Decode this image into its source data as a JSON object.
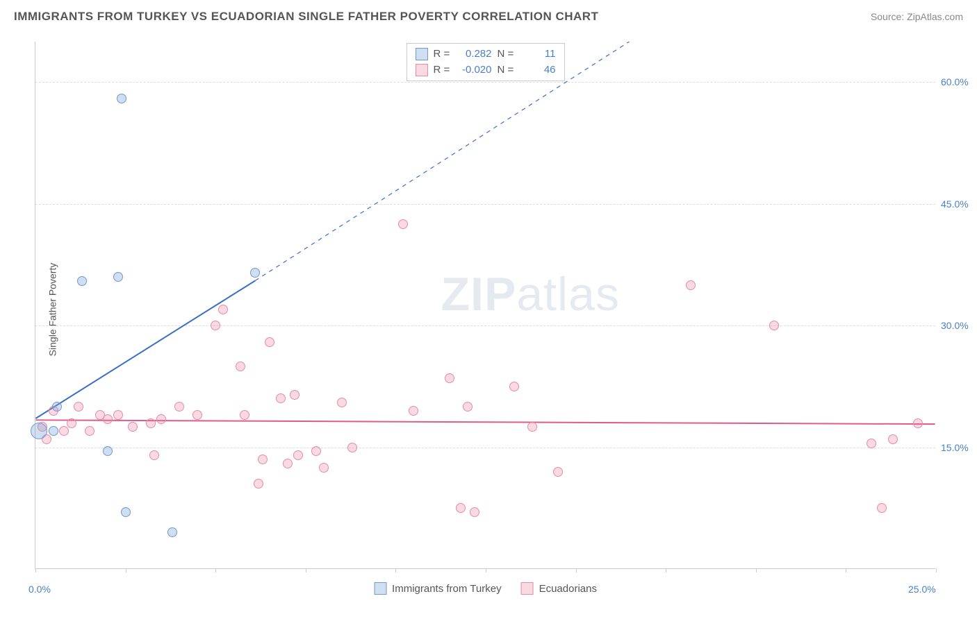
{
  "header": {
    "title": "IMMIGRANTS FROM TURKEY VS ECUADORIAN SINGLE FATHER POVERTY CORRELATION CHART",
    "source": "Source: ZipAtlas.com"
  },
  "chart": {
    "type": "scatter",
    "ylabel": "Single Father Poverty",
    "xlim": [
      0,
      25
    ],
    "ylim": [
      0,
      65
    ],
    "yticks": [
      15,
      30,
      45,
      60
    ],
    "ytick_labels": [
      "15.0%",
      "30.0%",
      "45.0%",
      "60.0%"
    ],
    "xticks": [
      0,
      2.5,
      5,
      7.5,
      10,
      12.5,
      15,
      17.5,
      20,
      22.5,
      25
    ],
    "xtick_labels_shown": {
      "first": "0.0%",
      "last": "25.0%"
    },
    "grid_color": "#dddddd",
    "axis_color": "#cccccc",
    "background_color": "#ffffff",
    "watermark": "ZIPatlas"
  },
  "series": {
    "turkey": {
      "label": "Immigrants from Turkey",
      "color_fill": "rgba(120,160,214,0.35)",
      "color_stroke": "#6f99cf",
      "marker_size": 14,
      "R": "0.282",
      "N": "11",
      "trend": {
        "x1": 0,
        "y1": 18.5,
        "x2": 6.1,
        "y2": 35.5,
        "dash_x2": 16.5,
        "dash_y2": 65,
        "color": "#3b6fc4",
        "width": 2
      },
      "points": [
        {
          "x": 0.1,
          "y": 17.0,
          "r": 24
        },
        {
          "x": 0.5,
          "y": 17.0
        },
        {
          "x": 0.6,
          "y": 20.0
        },
        {
          "x": 1.3,
          "y": 35.5
        },
        {
          "x": 2.0,
          "y": 14.5
        },
        {
          "x": 2.3,
          "y": 36.0
        },
        {
          "x": 2.4,
          "y": 58.0
        },
        {
          "x": 2.5,
          "y": 7.0
        },
        {
          "x": 3.8,
          "y": 4.5
        },
        {
          "x": 6.1,
          "y": 36.5
        }
      ]
    },
    "ecuadorians": {
      "label": "Ecuadorians",
      "color_fill": "rgba(236,128,160,0.30)",
      "color_stroke": "#e68aa8",
      "marker_size": 14,
      "R": "-0.020",
      "N": "46",
      "trend": {
        "x1": 0,
        "y1": 18.3,
        "x2": 25,
        "y2": 17.8,
        "color": "#e05a8a",
        "width": 2
      },
      "points": [
        {
          "x": 0.2,
          "y": 17.5
        },
        {
          "x": 0.3,
          "y": 16.0
        },
        {
          "x": 0.5,
          "y": 19.5
        },
        {
          "x": 0.8,
          "y": 17.0
        },
        {
          "x": 1.0,
          "y": 18.0
        },
        {
          "x": 1.2,
          "y": 20.0
        },
        {
          "x": 1.5,
          "y": 17.0
        },
        {
          "x": 1.8,
          "y": 19.0
        },
        {
          "x": 2.0,
          "y": 18.5
        },
        {
          "x": 2.3,
          "y": 19.0
        },
        {
          "x": 2.7,
          "y": 17.5
        },
        {
          "x": 3.2,
          "y": 18.0
        },
        {
          "x": 3.3,
          "y": 14.0
        },
        {
          "x": 3.5,
          "y": 18.5
        },
        {
          "x": 4.0,
          "y": 20.0
        },
        {
          "x": 4.5,
          "y": 19.0
        },
        {
          "x": 5.0,
          "y": 30.0
        },
        {
          "x": 5.2,
          "y": 32.0
        },
        {
          "x": 5.7,
          "y": 25.0
        },
        {
          "x": 5.8,
          "y": 19.0
        },
        {
          "x": 6.2,
          "y": 10.5
        },
        {
          "x": 6.3,
          "y": 13.5
        },
        {
          "x": 6.5,
          "y": 28.0
        },
        {
          "x": 6.8,
          "y": 21.0
        },
        {
          "x": 7.0,
          "y": 13.0
        },
        {
          "x": 7.2,
          "y": 21.5
        },
        {
          "x": 7.3,
          "y": 14.0
        },
        {
          "x": 7.8,
          "y": 14.5
        },
        {
          "x": 8.0,
          "y": 12.5
        },
        {
          "x": 8.5,
          "y": 20.5
        },
        {
          "x": 8.8,
          "y": 15.0
        },
        {
          "x": 10.2,
          "y": 42.5
        },
        {
          "x": 10.5,
          "y": 19.5
        },
        {
          "x": 11.5,
          "y": 23.5
        },
        {
          "x": 11.8,
          "y": 7.5
        },
        {
          "x": 12.0,
          "y": 20.0
        },
        {
          "x": 12.2,
          "y": 7.0
        },
        {
          "x": 13.3,
          "y": 22.5
        },
        {
          "x": 13.8,
          "y": 17.5
        },
        {
          "x": 14.5,
          "y": 12.0
        },
        {
          "x": 18.2,
          "y": 35.0
        },
        {
          "x": 20.5,
          "y": 30.0
        },
        {
          "x": 23.2,
          "y": 15.5
        },
        {
          "x": 23.5,
          "y": 7.5
        },
        {
          "x": 23.8,
          "y": 16.0
        },
        {
          "x": 24.5,
          "y": 18.0
        }
      ]
    }
  },
  "legend_top": {
    "r_label": "R =",
    "n_label": "N ="
  }
}
